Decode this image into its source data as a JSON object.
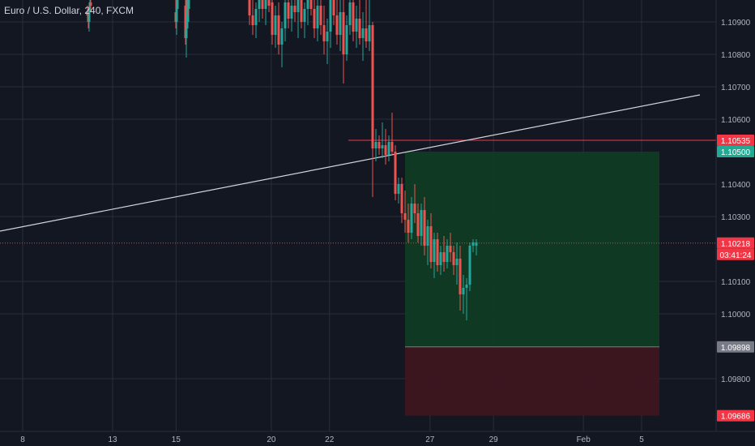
{
  "header": {
    "title": "Euro / U.S. Dollar, 240, FXCM"
  },
  "colors": {
    "background": "#131722",
    "grid": "#2a2e39",
    "text": "#b2b5be",
    "up": "#26a69a",
    "down": "#ef5350",
    "level_line": "#f23645",
    "trendline": "#d1d4dc",
    "profit_zone": "#0f3b24",
    "loss_zone": "#3d1620",
    "target_tag": "#22ab94",
    "stop_tag": "#f23645",
    "entry_tag": "#787b86"
  },
  "chart_data": {
    "type": "candlestick",
    "symbol": "Euro / U.S. Dollar, 240, FXCM",
    "ylim": [
      1.0962,
      1.11
    ],
    "y_ticks": [
      "1.10900",
      "1.10800",
      "1.10700",
      "1.10600",
      "1.10400",
      "1.10300",
      "1.10100",
      "1.10000",
      "1.09800"
    ],
    "y_tick_values": [
      1.109,
      1.108,
      1.107,
      1.106,
      1.104,
      1.103,
      1.101,
      1.1,
      1.098
    ],
    "x_tick_labels": [
      "8",
      "13",
      "15",
      "20",
      "22",
      "27",
      "29",
      "Feb",
      "5"
    ],
    "x_tick_bars": [
      0,
      17,
      29,
      47,
      58,
      77,
      89,
      106,
      117
    ],
    "grid": true,
    "candles": [
      [
        108,
        1.1093,
        1.1095,
        1.109,
        1.1092
      ],
      [
        109,
        1.1092,
        1.1094,
        1.1088,
        1.109
      ],
      [
        110,
        1.109,
        1.1096,
        1.1087,
        1.1094
      ],
      [
        111,
        1.1094,
        1.1098,
        1.1092,
        1.1096
      ],
      [
        112,
        1.1096,
        1.1099,
        1.1093,
        1.1095
      ],
      [
        217,
        1.1093,
        1.1101,
        1.1088,
        1.109
      ],
      [
        218,
        1.109,
        1.1096,
        1.1086,
        1.1094
      ],
      [
        219,
        1.1094,
        1.1101,
        1.1092,
        1.1097
      ],
      [
        229,
        1.1095,
        1.1098,
        1.1083,
        1.1085
      ],
      [
        230,
        1.1085,
        1.1092,
        1.1079,
        1.1088
      ],
      [
        231,
        1.1088,
        1.1101,
        1.1085,
        1.1099
      ],
      [
        232,
        1.1099,
        1.1101,
        1.1092,
        1.1094
      ],
      [
        233,
        1.1094,
        1.11,
        1.109,
        1.1097
      ],
      [
        308,
        1.1098,
        1.1101,
        1.1089,
        1.1092
      ],
      [
        312,
        1.1092,
        1.1097,
        1.1086,
        1.1089
      ],
      [
        316,
        1.1089,
        1.1096,
        1.1085,
        1.1094
      ],
      [
        320,
        1.1094,
        1.1101,
        1.109,
        1.1097
      ],
      [
        324,
        1.1097,
        1.1101,
        1.1091,
        1.1094
      ],
      [
        328,
        1.1094,
        1.1101,
        1.1089,
        1.1099
      ],
      [
        332,
        1.1099,
        1.1101,
        1.1093,
        1.1095
      ],
      [
        336,
        1.1096,
        1.1101,
        1.1083,
        1.1086
      ],
      [
        340,
        1.1086,
        1.1095,
        1.1082,
        1.1092
      ],
      [
        344,
        1.1092,
        1.1096,
        1.108,
        1.1083
      ],
      [
        348,
        1.1083,
        1.109,
        1.1076,
        1.1088
      ],
      [
        352,
        1.1088,
        1.1098,
        1.1084,
        1.1096
      ],
      [
        356,
        1.1096,
        1.1101,
        1.1088,
        1.1091
      ],
      [
        360,
        1.1091,
        1.1098,
        1.1087,
        1.1095
      ],
      [
        364,
        1.1095,
        1.1101,
        1.109,
        1.1093
      ],
      [
        368,
        1.1093,
        1.1099,
        1.1085,
        1.1097
      ],
      [
        372,
        1.1097,
        1.1101,
        1.1088,
        1.109
      ],
      [
        376,
        1.109,
        1.1096,
        1.1085,
        1.1094
      ],
      [
        380,
        1.1094,
        1.1101,
        1.1089,
        1.1099
      ],
      [
        384,
        1.1099,
        1.1101,
        1.1092,
        1.1094
      ],
      [
        388,
        1.1094,
        1.11,
        1.1085,
        1.1088
      ],
      [
        392,
        1.1088,
        1.1097,
        1.1084,
        1.1095
      ],
      [
        396,
        1.1095,
        1.1099,
        1.1086,
        1.1089
      ],
      [
        400,
        1.1089,
        1.1095,
        1.108,
        1.1084
      ],
      [
        404,
        1.1084,
        1.1091,
        1.1077,
        1.1087
      ],
      [
        408,
        1.1087,
        1.1101,
        1.1082,
        1.1098
      ],
      [
        412,
        1.1098,
        1.1101,
        1.1089,
        1.1092
      ],
      [
        416,
        1.1092,
        1.11,
        1.1083,
        1.1086
      ],
      [
        420,
        1.1086,
        1.1097,
        1.1081,
        1.1093
      ],
      [
        424,
        1.1093,
        1.1098,
        1.1071,
        1.108
      ],
      [
        428,
        1.108,
        1.1092,
        1.1078,
        1.1089
      ],
      [
        432,
        1.1089,
        1.1101,
        1.1086,
        1.1096
      ],
      [
        436,
        1.1096,
        1.1101,
        1.1084,
        1.1087
      ],
      [
        440,
        1.1087,
        1.1095,
        1.1082,
        1.1091
      ],
      [
        444,
        1.1091,
        1.1098,
        1.1083,
        1.1085
      ],
      [
        448,
        1.1085,
        1.1093,
        1.1078,
        1.1088
      ],
      [
        452,
        1.1088,
        1.1097,
        1.1082,
        1.1084
      ],
      [
        456,
        1.1084,
        1.1101,
        1.1081,
        1.1089
      ],
      [
        460,
        1.1089,
        1.109,
        1.1036,
        1.1051
      ],
      [
        464,
        1.1051,
        1.1057,
        1.1047,
        1.1053
      ],
      [
        468,
        1.1053,
        1.1055,
        1.1049,
        1.1051
      ],
      [
        472,
        1.1051,
        1.1059,
        1.1048,
        1.1052
      ],
      [
        476,
        1.1052,
        1.1057,
        1.1046,
        1.1049
      ],
      [
        480,
        1.1049,
        1.1055,
        1.1047,
        1.1053
      ],
      [
        484,
        1.1053,
        1.1062,
        1.1049,
        1.105
      ],
      [
        488,
        1.105,
        1.1052,
        1.1035,
        1.1037
      ],
      [
        492,
        1.1037,
        1.1042,
        1.1034,
        1.104
      ],
      [
        496,
        1.104,
        1.1042,
        1.1028,
        1.1031
      ],
      [
        500,
        1.1031,
        1.1038,
        1.1025,
        1.1029
      ],
      [
        504,
        1.1029,
        1.1034,
        1.1022,
        1.1025
      ],
      [
        508,
        1.1025,
        1.1036,
        1.1023,
        1.1034
      ],
      [
        512,
        1.1034,
        1.104,
        1.1028,
        1.1031
      ],
      [
        516,
        1.1031,
        1.1034,
        1.1022,
        1.1024
      ],
      [
        520,
        1.1024,
        1.1034,
        1.1021,
        1.1032
      ],
      [
        524,
        1.1032,
        1.1036,
        1.1018,
        1.1021
      ],
      [
        528,
        1.1021,
        1.1029,
        1.1015,
        1.1027
      ],
      [
        532,
        1.1027,
        1.1031,
        1.1014,
        1.1016
      ],
      [
        536,
        1.1016,
        1.1025,
        1.1011,
        1.1023
      ],
      [
        540,
        1.1023,
        1.1025,
        1.1013,
        1.1015
      ],
      [
        544,
        1.1015,
        1.1021,
        1.1012,
        1.1019
      ],
      [
        548,
        1.1019,
        1.1024,
        1.1013,
        1.1016
      ],
      [
        552,
        1.1016,
        1.1023,
        1.1014,
        1.1021
      ],
      [
        556,
        1.1021,
        1.1025,
        1.1016,
        1.1019
      ],
      [
        560,
        1.1019,
        1.1021,
        1.1012,
        1.1015
      ],
      [
        564,
        1.1015,
        1.1022,
        1.1009,
        1.1017
      ],
      [
        568,
        1.1017,
        1.1021,
        1.1001,
        1.1006
      ],
      [
        572,
        1.1006,
        1.1012,
        1.1,
        1.1008
      ],
      [
        576,
        1.1008,
        1.1011,
        1.0998,
        1.1009
      ],
      [
        580,
        1.1009,
        1.1022,
        1.1007,
        1.1021
      ],
      [
        584,
        1.1021,
        1.1023,
        1.1019,
        1.1022
      ],
      [
        588,
        1.1021,
        1.1023,
        1.1018,
        1.1022
      ]
    ],
    "horizontal_level": 1.10535,
    "trendline": {
      "start": [
        0,
        1.10255
      ],
      "end": [
        864,
        1.10675
      ]
    },
    "position": {
      "entry": 1.09898,
      "target": 1.105,
      "stop": 1.09686
    },
    "current_price": 1.10218,
    "countdown": "03:41:24",
    "price_tags": [
      {
        "label": "1.10535",
        "value": 1.10535,
        "color_key": "stop_tag"
      },
      {
        "label": "1.10500",
        "value": 1.105,
        "color_key": "target_tag"
      },
      {
        "label": "1.10218",
        "value": 1.10218,
        "color_key": "stop_tag"
      },
      {
        "label": "1.09898",
        "value": 1.09898,
        "color_key": "entry_tag"
      },
      {
        "label": "1.09686",
        "value": 1.09686,
        "color_key": "stop_tag"
      }
    ]
  }
}
